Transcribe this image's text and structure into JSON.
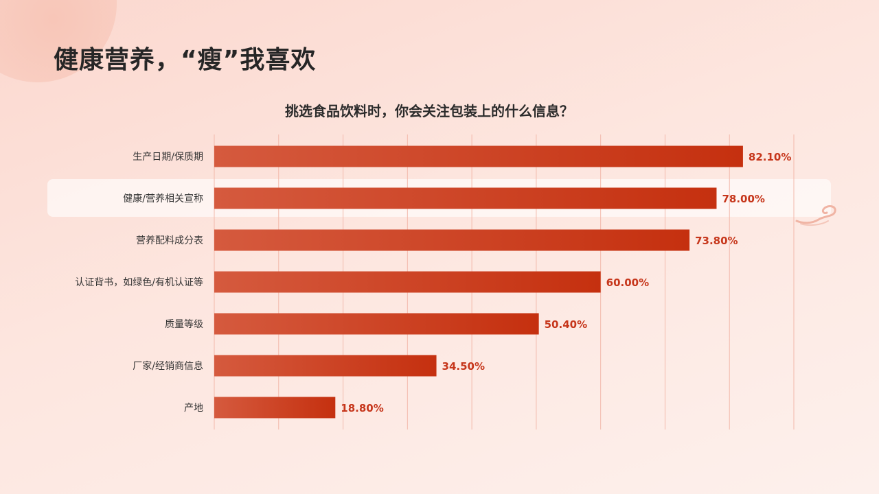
{
  "page": {
    "title": "健康营养，“瘦”我喜欢"
  },
  "colors": {
    "bar_start": "#d55a3e",
    "bar_end": "#c5300f",
    "value_label": "#c6361b",
    "gridline": "#f2b9ab"
  },
  "chart_data": {
    "type": "bar",
    "orientation": "horizontal",
    "title": "挑选食品饮料时，你会关注包装上的什么信息？",
    "categories": [
      "生产日期/保质期",
      "健康/营养相关宣称",
      "营养配料成分表",
      "认证背书，如绿色/有机认证等",
      "质量等级",
      "厂家/经销商信息",
      "产地"
    ],
    "values": [
      82.1,
      78.0,
      73.8,
      60.0,
      50.4,
      34.5,
      18.8
    ],
    "value_labels": [
      "82.10%",
      "78.00%",
      "73.80%",
      "60.00%",
      "50.40%",
      "34.50%",
      "18.80%"
    ],
    "highlighted_category": "健康/营养相关宣称",
    "xlim": [
      0,
      90
    ],
    "grid": true,
    "legend": "none"
  }
}
